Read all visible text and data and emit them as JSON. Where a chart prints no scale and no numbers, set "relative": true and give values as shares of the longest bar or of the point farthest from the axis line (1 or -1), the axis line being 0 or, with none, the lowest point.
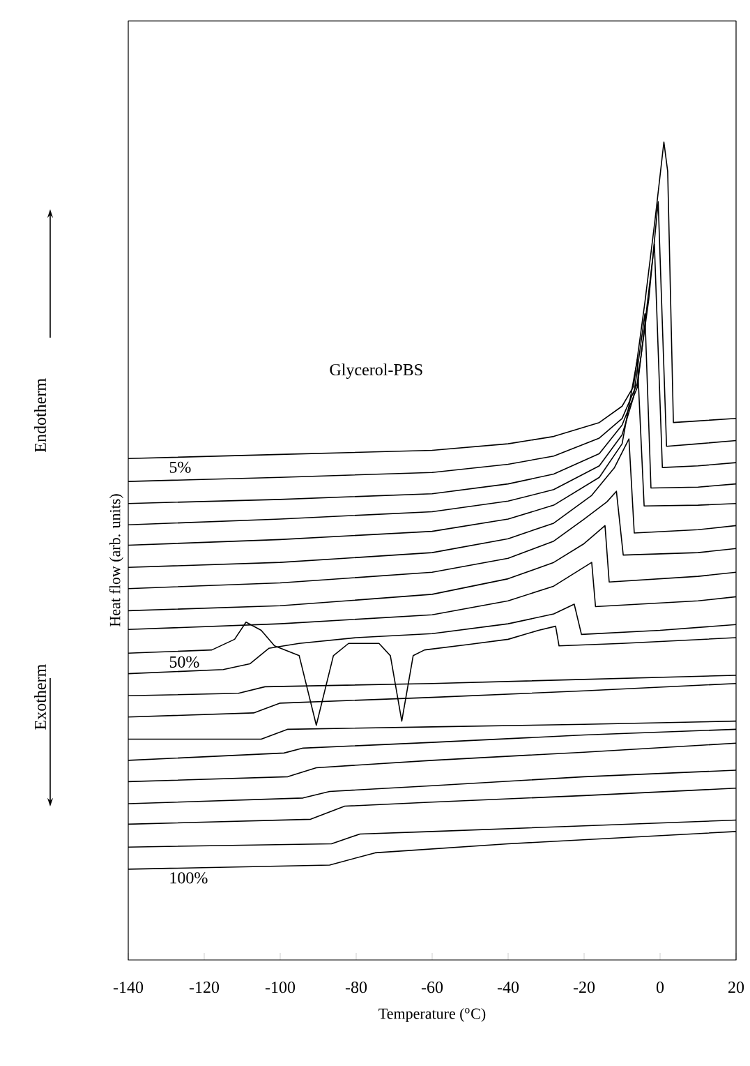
{
  "chart_data": {
    "type": "line",
    "relative": true,
    "xlabel": "Temperature ($^{o}$C)",
    "ylabel": "Heat flow (arb. units)",
    "annotations": [
      "Glycerol-PBS",
      "Endotherm",
      "Exotherm"
    ],
    "xlim": [
      -140,
      20
    ],
    "xticks": [
      -140,
      -120,
      -100,
      -80,
      -60,
      -40,
      -20,
      0,
      20
    ],
    "marker": "none",
    "line_style": "solid",
    "series": [
      {
        "name": "5%",
        "color": "#000000",
        "x": [
          -140,
          -100,
          -60,
          -40,
          -28,
          -16,
          -10,
          -7,
          -4,
          -1.3,
          1,
          2,
          3.5,
          10,
          20
        ],
        "values": [
          0.613,
          0.618,
          0.623,
          0.631,
          0.64,
          0.657,
          0.677,
          0.701,
          0.804,
          0.906,
          1.0,
          0.964,
          0.657,
          0.659,
          0.662
        ]
      },
      {
        "color": "#000000",
        "x": [
          -140,
          -100,
          -60,
          -40,
          -28,
          -16,
          -10,
          -6,
          -3,
          -0.5,
          1.7,
          10,
          20
        ],
        "values": [
          0.585,
          0.59,
          0.596,
          0.606,
          0.616,
          0.638,
          0.662,
          0.705,
          0.807,
          0.927,
          0.628,
          0.631,
          0.635
        ]
      },
      {
        "color": "#000000",
        "x": [
          -140,
          -100,
          -60,
          -40,
          -28,
          -16,
          -10,
          -6,
          -1.5,
          0.6,
          10,
          20
        ],
        "values": [
          0.558,
          0.563,
          0.57,
          0.582,
          0.594,
          0.619,
          0.654,
          0.7,
          0.875,
          0.602,
          0.604,
          0.608
        ]
      },
      {
        "color": "#000000",
        "x": [
          -140,
          -100,
          -60,
          -40,
          -28,
          -16,
          -10,
          -7,
          -4,
          -2.4,
          10,
          20
        ],
        "values": [
          0.532,
          0.539,
          0.548,
          0.561,
          0.575,
          0.604,
          0.642,
          0.688,
          0.79,
          0.577,
          0.578,
          0.582
        ]
      },
      {
        "color": "#000000",
        "x": [
          -140,
          -100,
          -60,
          -40,
          -28,
          -16,
          -10,
          -6,
          -4.2,
          10,
          20
        ],
        "values": [
          0.507,
          0.514,
          0.524,
          0.539,
          0.556,
          0.59,
          0.631,
          0.734,
          0.555,
          0.556,
          0.558
        ]
      },
      {
        "color": "#000000",
        "x": [
          -140,
          -100,
          -60,
          -40,
          -28,
          -18,
          -12,
          -8.2,
          -6.8,
          10,
          20
        ],
        "values": [
          0.48,
          0.486,
          0.498,
          0.515,
          0.534,
          0.568,
          0.602,
          0.637,
          0.522,
          0.526,
          0.531
        ]
      },
      {
        "color": "#000000",
        "x": [
          -140,
          -100,
          -60,
          -40,
          -28,
          -20,
          -14,
          -11.5,
          -9.7,
          10,
          20
        ],
        "values": [
          0.454,
          0.461,
          0.474,
          0.491,
          0.512,
          0.539,
          0.56,
          0.573,
          0.495,
          0.498,
          0.503
        ]
      },
      {
        "color": "#000000",
        "x": [
          -140,
          -100,
          -60,
          -40,
          -28,
          -20,
          -14.5,
          -13.4,
          10,
          20
        ],
        "values": [
          0.427,
          0.433,
          0.447,
          0.466,
          0.486,
          0.509,
          0.531,
          0.462,
          0.469,
          0.474
        ]
      },
      {
        "color": "#000000",
        "x": [
          -140,
          -100,
          -60,
          -40,
          -28,
          -18,
          -17,
          10,
          20
        ],
        "values": [
          0.404,
          0.411,
          0.422,
          0.439,
          0.457,
          0.486,
          0.432,
          0.439,
          0.444
        ]
      },
      {
        "name": "50%",
        "color": "#000000",
        "x": [
          -140,
          -118,
          -112,
          -109,
          -105,
          -101.5,
          -95,
          -90.5,
          -86,
          -82,
          -74,
          -71,
          -68,
          -65,
          -62,
          -50,
          -40,
          -32,
          -27.5,
          -26.6,
          -10,
          20
        ],
        "values": [
          0.375,
          0.379,
          0.392,
          0.413,
          0.403,
          0.384,
          0.372,
          0.287,
          0.372,
          0.387,
          0.387,
          0.372,
          0.292,
          0.372,
          0.379,
          0.386,
          0.392,
          0.403,
          0.408,
          0.384,
          0.387,
          0.394
        ]
      },
      {
        "color": "#000000",
        "x": [
          -140,
          -115,
          -108,
          -103,
          -95,
          -80,
          -60,
          -40,
          -28,
          -22.6,
          -20.7,
          0,
          20
        ],
        "values": [
          0.35,
          0.355,
          0.362,
          0.381,
          0.387,
          0.394,
          0.399,
          0.411,
          0.423,
          0.435,
          0.398,
          0.403,
          0.41
        ]
      },
      {
        "color": "#000000",
        "x": [
          -140,
          -111,
          -104,
          -60,
          -20,
          20
        ],
        "values": [
          0.323,
          0.326,
          0.334,
          0.338,
          0.343,
          0.348
        ]
      },
      {
        "color": "#000000",
        "x": [
          -140,
          -107,
          -100,
          -60,
          -20,
          20
        ],
        "values": [
          0.297,
          0.302,
          0.314,
          0.321,
          0.329,
          0.338
        ]
      },
      {
        "color": "#000000",
        "x": [
          -140,
          -105,
          -98,
          -60,
          -20,
          20
        ],
        "values": [
          0.27,
          0.27,
          0.282,
          0.285,
          0.288,
          0.292
        ]
      },
      {
        "color": "#000000",
        "x": [
          -140,
          -99,
          -94,
          -60,
          -20,
          20
        ],
        "values": [
          0.244,
          0.253,
          0.259,
          0.266,
          0.275,
          0.282
        ]
      },
      {
        "color": "#000000",
        "x": [
          -140,
          -98,
          -90.5,
          -60,
          -20,
          20
        ],
        "values": [
          0.218,
          0.224,
          0.235,
          0.244,
          0.254,
          0.265
        ]
      },
      {
        "color": "#000000",
        "x": [
          -140,
          -94,
          -87,
          -60,
          -20,
          20
        ],
        "values": [
          0.191,
          0.198,
          0.206,
          0.213,
          0.224,
          0.232
        ]
      },
      {
        "color": "#000000",
        "x": [
          -140,
          -92,
          -83,
          -60,
          -20,
          20
        ],
        "values": [
          0.166,
          0.172,
          0.188,
          0.193,
          0.201,
          0.21
        ]
      },
      {
        "color": "#000000",
        "x": [
          -140,
          -86.5,
          -79,
          -60,
          -20,
          20
        ],
        "values": [
          0.138,
          0.142,
          0.154,
          0.157,
          0.164,
          0.171
        ]
      },
      {
        "name": "100%",
        "color": "#000000",
        "x": [
          -140,
          -87,
          -75,
          -40,
          20
        ],
        "values": [
          0.111,
          0.116,
          0.131,
          0.142,
          0.157
        ]
      }
    ]
  }
}
